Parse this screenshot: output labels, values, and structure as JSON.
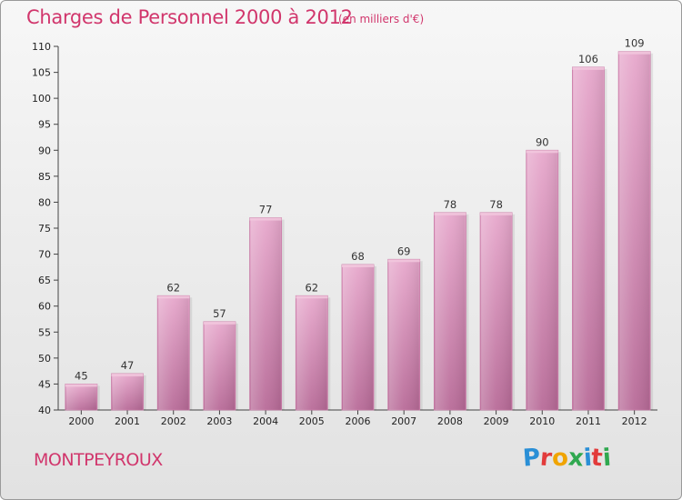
{
  "header": {
    "title": "Charges de Personnel 2000 à 2012",
    "subtitle": "(en milliers d'€)"
  },
  "footer": {
    "city": "MONTPEYROUX",
    "logo_letters": [
      "P",
      "r",
      "o",
      "x",
      "i",
      "t",
      "i"
    ],
    "logo_colors": [
      "#2a8fd6",
      "#e23b3b",
      "#f0a400",
      "#2fa84f",
      "#2a8fd6",
      "#e23b3b",
      "#2fa84f"
    ]
  },
  "chart_data": {
    "type": "bar",
    "title": "Charges de Personnel 2000 à 2012",
    "subtitle": "(en milliers d'€)",
    "categories": [
      "2000",
      "2001",
      "2002",
      "2003",
      "2004",
      "2005",
      "2006",
      "2007",
      "2008",
      "2009",
      "2010",
      "2011",
      "2012"
    ],
    "values": [
      45,
      47,
      62,
      57,
      77,
      62,
      68,
      69,
      78,
      78,
      90,
      106,
      109
    ],
    "ylim": [
      40,
      110
    ],
    "yticks": [
      40,
      45,
      50,
      55,
      60,
      65,
      70,
      75,
      80,
      85,
      90,
      95,
      100,
      105,
      110
    ],
    "grid": false,
    "bar_color": "#d67fb0"
  }
}
